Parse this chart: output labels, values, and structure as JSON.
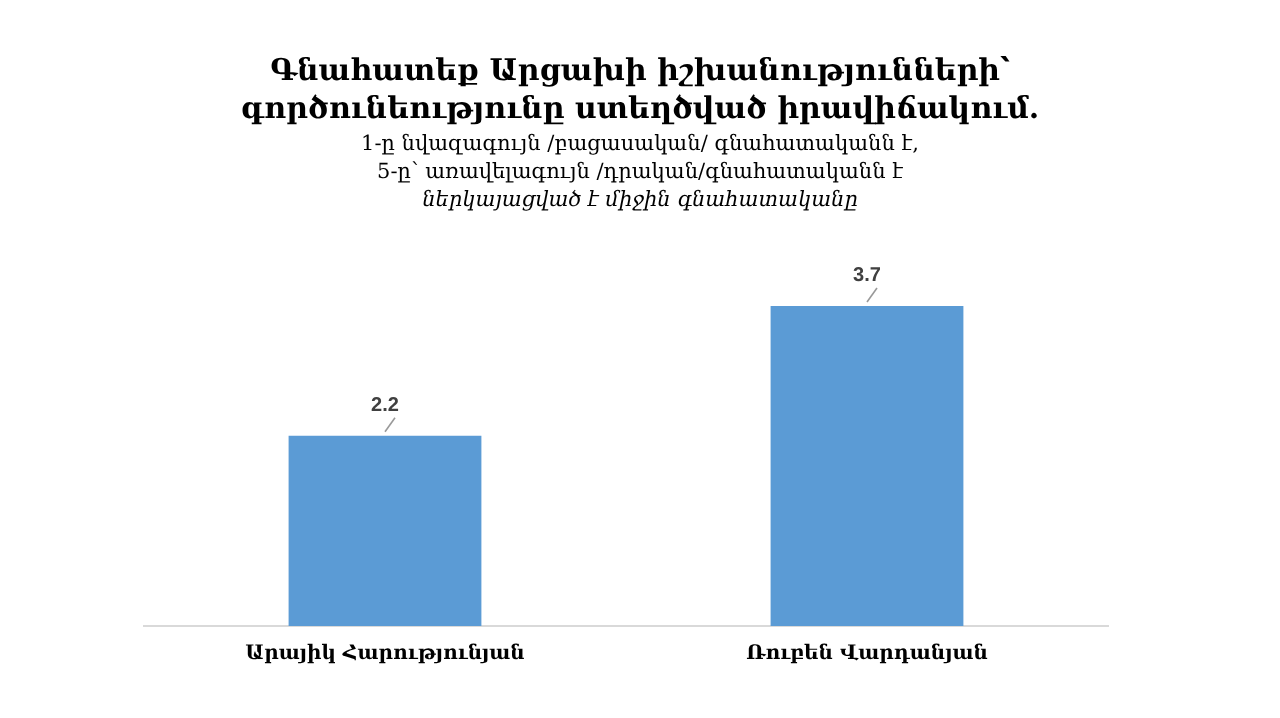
{
  "chart_data": {
    "type": "bar",
    "title": "Գնահատեք Արցախի իշխանությունների՝ գործունեությունը ստեղծված իրավիճակում.",
    "subtitle": "1-ը նվազագույն /բացասական/ գնահատականն է,\n5-ը՝ առավելագույն /դրական/գնահատականն է\nներկայացված է միջին գնահատականը",
    "categories": [
      "Արայիկ Հարությունյան",
      "Ռուբեն Վարդանյան"
    ],
    "values": [
      2.2,
      3.7
    ],
    "color": "#5b9bd5",
    "data_labels": true,
    "grid": false,
    "legend": false,
    "tick_labels": "x"
  }
}
